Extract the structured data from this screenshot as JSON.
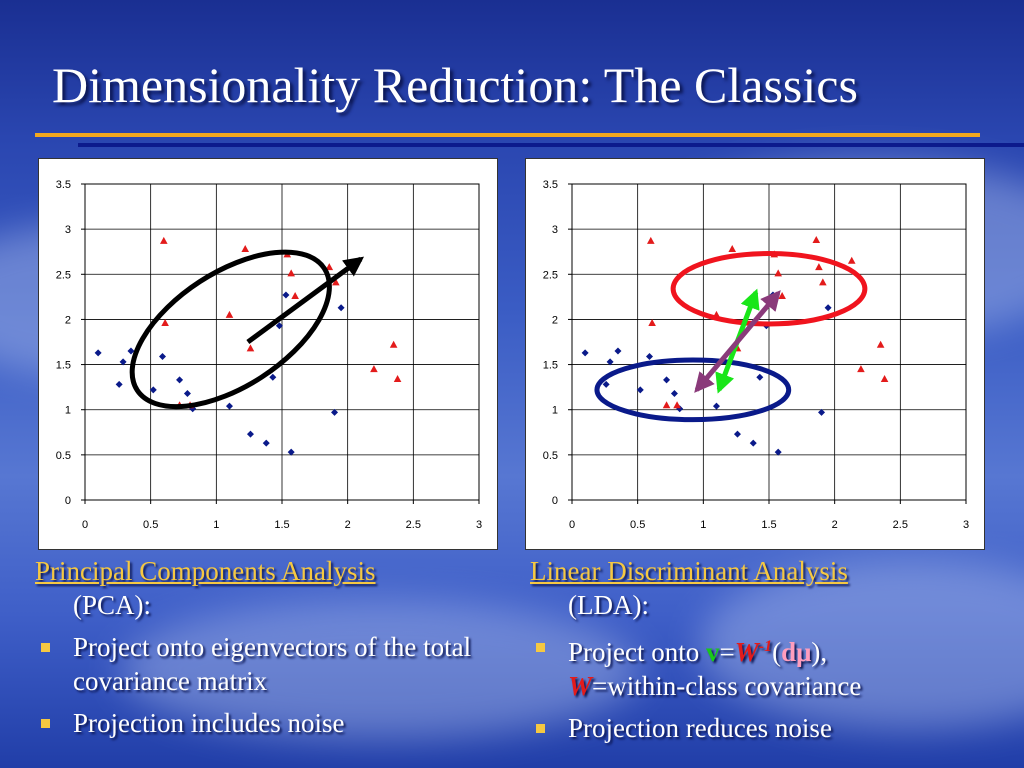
{
  "slide": {
    "title": "Dimensionality Reduction: The Classics",
    "colors": {
      "title": "#ffffff",
      "rule_orange": "#f2a81e",
      "rule_blue": "#0c1a8c",
      "bullet": "#f5c842"
    }
  },
  "captions": {
    "pca": {
      "heading": "Principal Components Analysis",
      "heading_cont": "(PCA):",
      "bullets": [
        "Project onto eigenvectors of the total covariance matrix",
        "Projection includes noise"
      ]
    },
    "lda": {
      "heading": "Linear Discriminant Analysis",
      "heading_cont": "(LDA):",
      "bullet1": {
        "prefix": "Project onto ",
        "v": "v",
        "eq": "=",
        "W": "W",
        "sup": "-1",
        "open": "(",
        "dmu": "dμ",
        "close": "),",
        "W2": "W",
        "rest": "=within-class covariance"
      },
      "bullet2": "Projection reduces noise"
    }
  },
  "chart_data": [
    {
      "type": "scatter",
      "xlim": [
        0,
        3
      ],
      "ylim": [
        0,
        3.5
      ],
      "x_ticks": [
        "0",
        "0.5",
        "1",
        "1.5",
        "2",
        "2.5",
        "3"
      ],
      "y_ticks": [
        "0",
        "0.5",
        "1",
        "1.5",
        "2",
        "2.5",
        "3",
        "3.5"
      ],
      "grid": true,
      "series": [
        {
          "marker": "diamond",
          "color": "#0a1a8a",
          "points": [
            [
              0.1,
              1.63
            ],
            [
              0.26,
              1.28
            ],
            [
              0.29,
              1.53
            ],
            [
              0.35,
              1.65
            ],
            [
              0.52,
              1.22
            ],
            [
              0.59,
              1.59
            ],
            [
              0.72,
              1.33
            ],
            [
              0.78,
              1.18
            ],
            [
              0.82,
              1.01
            ],
            [
              1.1,
              1.04
            ],
            [
              1.26,
              0.73
            ],
            [
              1.38,
              0.63
            ],
            [
              1.43,
              1.36
            ],
            [
              1.48,
              1.93
            ],
            [
              1.53,
              2.27
            ],
            [
              1.57,
              0.53
            ],
            [
              1.9,
              0.97
            ],
            [
              1.95,
              2.13
            ]
          ]
        },
        {
          "marker": "triangle",
          "color": "#e31b1b",
          "points": [
            [
              0.6,
              2.87
            ],
            [
              0.61,
              1.96
            ],
            [
              0.72,
              1.05
            ],
            [
              0.8,
              1.05
            ],
            [
              1.1,
              2.05
            ],
            [
              1.22,
              2.78
            ],
            [
              1.26,
              1.68
            ],
            [
              1.54,
              2.72
            ],
            [
              1.57,
              2.51
            ],
            [
              1.6,
              2.26
            ],
            [
              1.86,
              2.58
            ],
            [
              1.91,
              2.41
            ],
            [
              2.2,
              1.45
            ],
            [
              2.35,
              1.72
            ],
            [
              2.38,
              1.34
            ]
          ]
        }
      ],
      "annotations": {
        "ellipse": {
          "cx": 1.11,
          "cy": 1.89,
          "rx": 0.85,
          "ry": 0.63,
          "angle": -33,
          "color": "#000000"
        },
        "arrow": {
          "from": [
            1.24,
            1.75
          ],
          "to": [
            2.1,
            2.67
          ],
          "color": "#000000"
        }
      }
    },
    {
      "type": "scatter",
      "xlim": [
        0,
        3
      ],
      "ylim": [
        0,
        3.5
      ],
      "x_ticks": [
        "0",
        "0.5",
        "1",
        "1.5",
        "2",
        "2.5",
        "3"
      ],
      "y_ticks": [
        "0",
        "0.5",
        "1",
        "1.5",
        "2",
        "2.5",
        "3",
        "3.5"
      ],
      "grid": true,
      "series": [
        {
          "marker": "diamond",
          "color": "#0a1a8a",
          "points": [
            [
              0.1,
              1.63
            ],
            [
              0.26,
              1.28
            ],
            [
              0.29,
              1.53
            ],
            [
              0.35,
              1.65
            ],
            [
              0.52,
              1.22
            ],
            [
              0.59,
              1.59
            ],
            [
              0.72,
              1.33
            ],
            [
              0.78,
              1.18
            ],
            [
              0.82,
              1.01
            ],
            [
              1.1,
              1.04
            ],
            [
              1.26,
              0.73
            ],
            [
              1.38,
              0.63
            ],
            [
              1.43,
              1.36
            ],
            [
              1.48,
              1.93
            ],
            [
              1.53,
              2.27
            ],
            [
              1.57,
              0.53
            ],
            [
              1.9,
              0.97
            ],
            [
              1.95,
              2.13
            ]
          ]
        },
        {
          "marker": "triangle",
          "color": "#e31b1b",
          "points": [
            [
              0.6,
              2.87
            ],
            [
              0.61,
              1.96
            ],
            [
              0.72,
              1.05
            ],
            [
              0.8,
              1.05
            ],
            [
              1.1,
              2.05
            ],
            [
              1.22,
              2.78
            ],
            [
              1.26,
              1.68
            ],
            [
              1.54,
              2.72
            ],
            [
              1.57,
              2.51
            ],
            [
              1.6,
              2.26
            ],
            [
              1.86,
              2.88
            ],
            [
              1.88,
              2.58
            ],
            [
              1.91,
              2.41
            ],
            [
              2.13,
              2.65
            ],
            [
              2.2,
              1.45
            ],
            [
              2.35,
              1.72
            ],
            [
              2.38,
              1.34
            ]
          ]
        }
      ],
      "annotations": {
        "ellipse_blue": {
          "cx": 0.92,
          "cy": 1.22,
          "rx": 0.73,
          "ry": 0.33,
          "angle": 0,
          "color": "#0a1a8a"
        },
        "ellipse_red": {
          "cx": 1.5,
          "cy": 2.34,
          "rx": 0.73,
          "ry": 0.39,
          "angle": 0,
          "color": "#f0141e"
        },
        "arrow_green": {
          "from": [
            1.12,
            1.22
          ],
          "to": [
            1.4,
            2.3
          ],
          "color": "#19e619"
        },
        "arrow_purple": {
          "from": [
            0.95,
            1.22
          ],
          "to": [
            1.57,
            2.29
          ],
          "color": "#8a3a7a"
        }
      }
    }
  ]
}
